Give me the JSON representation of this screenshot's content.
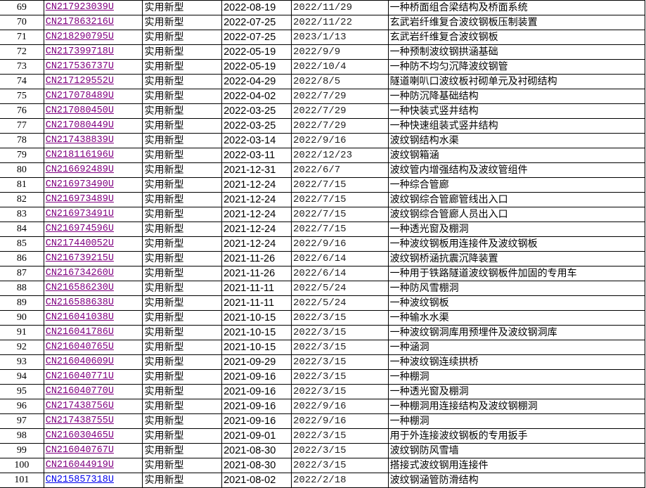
{
  "colors": {
    "visited_link": "#800080",
    "unvisited_link": "#0000ee"
  },
  "rows": [
    {
      "no": "69",
      "patent": "CN217923039U",
      "type": "实用新型",
      "apply_date": "2022-08-19",
      "pub_date": "2022/11/29",
      "title": "一种桥面组合梁结构及桥面系统",
      "visited": true
    },
    {
      "no": "70",
      "patent": "CN217863216U",
      "type": "实用新型",
      "apply_date": "2022-07-25",
      "pub_date": "2022/11/22",
      "title": "玄武岩纤维复合波纹钢板压制装置",
      "visited": true
    },
    {
      "no": "71",
      "patent": "CN218290795U",
      "type": "实用新型",
      "apply_date": "2022-07-25",
      "pub_date": "2023/1/13",
      "title": "玄武岩纤维复合波纹钢板",
      "visited": true
    },
    {
      "no": "72",
      "patent": "CN217399718U",
      "type": "实用新型",
      "apply_date": "2022-05-19",
      "pub_date": "2022/9/9",
      "title": "一种预制波纹钢拱涵基础",
      "visited": true
    },
    {
      "no": "73",
      "patent": "CN217536737U",
      "type": "实用新型",
      "apply_date": "2022-05-19",
      "pub_date": "2022/10/4",
      "title": "一种防不均匀沉降波纹钢管",
      "visited": true
    },
    {
      "no": "74",
      "patent": "CN217129552U",
      "type": "实用新型",
      "apply_date": "2022-04-29",
      "pub_date": "2022/8/5",
      "title": "隧道喇叭口波纹板衬砌单元及衬砌结构",
      "visited": true
    },
    {
      "no": "75",
      "patent": "CN217078489U",
      "type": "实用新型",
      "apply_date": "2022-04-02",
      "pub_date": "2022/7/29",
      "title": "一种防沉降基础结构",
      "visited": true
    },
    {
      "no": "76",
      "patent": "CN217080450U",
      "type": "实用新型",
      "apply_date": "2022-03-25",
      "pub_date": "2022/7/29",
      "title": "一种快装式竖井结构",
      "visited": true
    },
    {
      "no": "77",
      "patent": "CN217080449U",
      "type": "实用新型",
      "apply_date": "2022-03-25",
      "pub_date": "2022/7/29",
      "title": "一种快速组装式竖井结构",
      "visited": true
    },
    {
      "no": "78",
      "patent": "CN217438839U",
      "type": "实用新型",
      "apply_date": "2022-03-14",
      "pub_date": "2022/9/16",
      "title": "波纹钢结构水渠",
      "visited": true
    },
    {
      "no": "79",
      "patent": "CN218116196U",
      "type": "实用新型",
      "apply_date": "2022-03-11",
      "pub_date": "2022/12/23",
      "title": "波纹钢箱涵",
      "visited": true
    },
    {
      "no": "80",
      "patent": "CN216692489U",
      "type": "实用新型",
      "apply_date": "2021-12-31",
      "pub_date": "2022/6/7",
      "title": "波纹管内增强结构及波纹管组件",
      "visited": true
    },
    {
      "no": "81",
      "patent": "CN216973490U",
      "type": "实用新型",
      "apply_date": "2021-12-24",
      "pub_date": "2022/7/15",
      "title": "一种综合管廊",
      "visited": true
    },
    {
      "no": "82",
      "patent": "CN216973489U",
      "type": "实用新型",
      "apply_date": "2021-12-24",
      "pub_date": "2022/7/15",
      "title": "波纹钢综合管廊管线出入口",
      "visited": true
    },
    {
      "no": "83",
      "patent": "CN216973491U",
      "type": "实用新型",
      "apply_date": "2021-12-24",
      "pub_date": "2022/7/15",
      "title": "波纹钢综合管廊人员出入口",
      "visited": true
    },
    {
      "no": "84",
      "patent": "CN216974596U",
      "type": "实用新型",
      "apply_date": "2021-12-24",
      "pub_date": "2022/7/15",
      "title": "一种透光窗及棚洞",
      "visited": true
    },
    {
      "no": "85",
      "patent": "CN217440052U",
      "type": "实用新型",
      "apply_date": "2021-12-24",
      "pub_date": "2022/9/16",
      "title": "一种波纹钢板用连接件及波纹钢板",
      "visited": true
    },
    {
      "no": "86",
      "patent": "CN216739215U",
      "type": "实用新型",
      "apply_date": "2021-11-26",
      "pub_date": "2022/6/14",
      "title": "波纹钢桥涵抗震沉降装置",
      "visited": true
    },
    {
      "no": "87",
      "patent": "CN216734260U",
      "type": "实用新型",
      "apply_date": "2021-11-26",
      "pub_date": "2022/6/14",
      "title": "一种用于铁路隧道波纹钢板件加固的专用车",
      "visited": true
    },
    {
      "no": "88",
      "patent": "CN216586230U",
      "type": "实用新型",
      "apply_date": "2021-11-11",
      "pub_date": "2022/5/24",
      "title": "一种防风雪棚洞",
      "visited": true
    },
    {
      "no": "89",
      "patent": "CN216588638U",
      "type": "实用新型",
      "apply_date": "2021-11-11",
      "pub_date": "2022/5/24",
      "title": "一种波纹钢板",
      "visited": true
    },
    {
      "no": "90",
      "patent": "CN216041038U",
      "type": "实用新型",
      "apply_date": "2021-10-15",
      "pub_date": "2022/3/15",
      "title": "一种输水水渠",
      "visited": true
    },
    {
      "no": "91",
      "patent": "CN216041786U",
      "type": "实用新型",
      "apply_date": "2021-10-15",
      "pub_date": "2022/3/15",
      "title": "一种波纹钢洞库用预埋件及波纹钢洞库",
      "visited": true
    },
    {
      "no": "92",
      "patent": "CN216040765U",
      "type": "实用新型",
      "apply_date": "2021-10-15",
      "pub_date": "2022/3/15",
      "title": "一种涵洞",
      "visited": true
    },
    {
      "no": "93",
      "patent": "CN216040609U",
      "type": "实用新型",
      "apply_date": "2021-09-29",
      "pub_date": "2022/3/15",
      "title": "一种波纹钢连续拱桥",
      "visited": true
    },
    {
      "no": "94",
      "patent": "CN216040771U",
      "type": "实用新型",
      "apply_date": "2021-09-16",
      "pub_date": "2022/3/15",
      "title": "一种棚洞",
      "visited": true
    },
    {
      "no": "95",
      "patent": "CN216040770U",
      "type": "实用新型",
      "apply_date": "2021-09-16",
      "pub_date": "2022/3/15",
      "title": "一种透光窗及棚洞",
      "visited": true
    },
    {
      "no": "96",
      "patent": "CN217438756U",
      "type": "实用新型",
      "apply_date": "2021-09-16",
      "pub_date": "2022/9/16",
      "title": "一种棚洞用连接结构及波纹钢棚洞",
      "visited": true
    },
    {
      "no": "97",
      "patent": "CN217438755U",
      "type": "实用新型",
      "apply_date": "2021-09-16",
      "pub_date": "2022/9/16",
      "title": "一种棚洞",
      "visited": true
    },
    {
      "no": "98",
      "patent": "CN216030465U",
      "type": "实用新型",
      "apply_date": "2021-09-01",
      "pub_date": "2022/3/15",
      "title": "用于外连接波纹钢板的专用扳手",
      "visited": true
    },
    {
      "no": "99",
      "patent": "CN216040767U",
      "type": "实用新型",
      "apply_date": "2021-08-30",
      "pub_date": "2022/3/15",
      "title": "波纹钢防风雪墙",
      "visited": true
    },
    {
      "no": "100",
      "patent": "CN216044919U",
      "type": "实用新型",
      "apply_date": "2021-08-30",
      "pub_date": "2022/3/15",
      "title": "搭接式波纹钢用连接件",
      "visited": true
    },
    {
      "no": "101",
      "patent": "CN215857318U",
      "type": "实用新型",
      "apply_date": "2021-08-02",
      "pub_date": "2022/2/18",
      "title": "波纹钢涵管防滑结构",
      "visited": false
    }
  ]
}
